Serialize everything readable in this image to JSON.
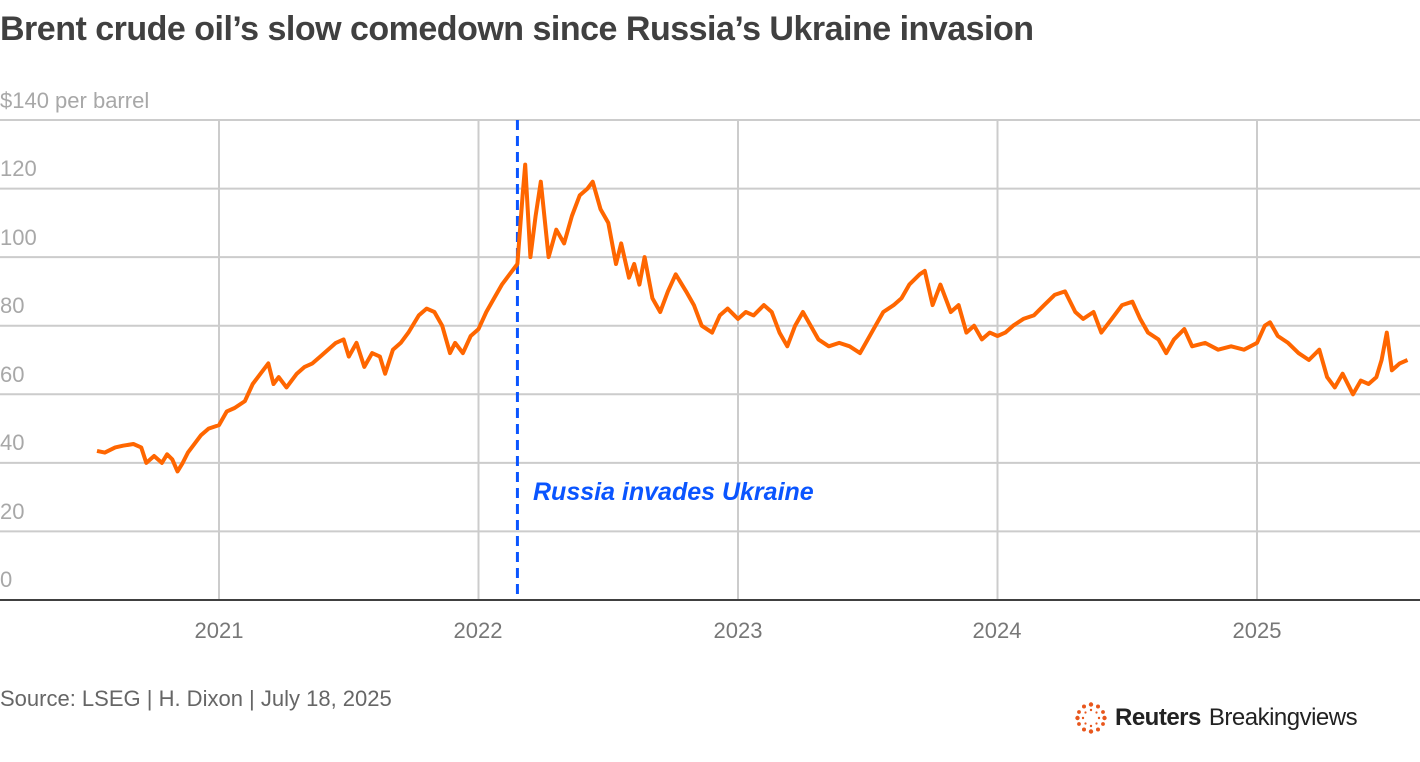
{
  "title": "Brent crude oil’s slow comedown since Russia’s Ukraine invasion",
  "unit_label": "$140 per barrel",
  "source": "Source: LSEG | H. Dixon | July 18, 2025",
  "logo": {
    "icon": "reuters-dot-ring-icon",
    "brand": "Reuters",
    "product": "Breakingviews"
  },
  "colors": {
    "series": "#ff6600",
    "annotation": "#0a55ff",
    "grid": "#cccccc",
    "axis": "#404040",
    "text_muted": "#a8a8a8"
  },
  "annotation": {
    "label": "Russia invades Ukraine",
    "x": 2022.15
  },
  "chart_data": {
    "type": "line",
    "title": "Brent crude oil’s slow comedown since Russia’s Ukraine invasion",
    "xlabel": "",
    "ylabel": "$ per barrel",
    "ylim": [
      0,
      140
    ],
    "yticks": [
      0,
      20,
      40,
      60,
      80,
      100,
      120,
      140
    ],
    "ytick_labels": [
      "0",
      "20",
      "40",
      "60",
      "80",
      "100",
      "120",
      "$140 per barrel"
    ],
    "xlim": [
      2020.53,
      2025.58
    ],
    "xticks": [
      2021,
      2022,
      2023,
      2024,
      2025
    ],
    "xtick_labels": [
      "2021",
      "2022",
      "2023",
      "2024",
      "2025"
    ],
    "grid": true,
    "legend": "none",
    "annotations": [
      {
        "type": "vline",
        "x": 2022.15,
        "label": "Russia invades Ukraine",
        "style": "dashed",
        "color": "#0a55ff"
      }
    ],
    "series": [
      {
        "name": "Brent crude",
        "color": "#ff6600",
        "points": [
          [
            2020.53,
            43.5
          ],
          [
            2020.56,
            43
          ],
          [
            2020.6,
            44.5
          ],
          [
            2020.63,
            45
          ],
          [
            2020.67,
            45.5
          ],
          [
            2020.7,
            44.5
          ],
          [
            2020.72,
            40
          ],
          [
            2020.75,
            42
          ],
          [
            2020.78,
            40
          ],
          [
            2020.8,
            42.5
          ],
          [
            2020.82,
            41
          ],
          [
            2020.84,
            37.5
          ],
          [
            2020.86,
            40
          ],
          [
            2020.88,
            43
          ],
          [
            2020.9,
            45
          ],
          [
            2020.93,
            48
          ],
          [
            2020.96,
            50
          ],
          [
            2021.0,
            51
          ],
          [
            2021.03,
            55
          ],
          [
            2021.06,
            56
          ],
          [
            2021.1,
            58
          ],
          [
            2021.13,
            63
          ],
          [
            2021.16,
            66
          ],
          [
            2021.19,
            69
          ],
          [
            2021.21,
            63
          ],
          [
            2021.23,
            65
          ],
          [
            2021.26,
            62
          ],
          [
            2021.3,
            66
          ],
          [
            2021.33,
            68
          ],
          [
            2021.36,
            69
          ],
          [
            2021.39,
            71
          ],
          [
            2021.42,
            73
          ],
          [
            2021.45,
            75
          ],
          [
            2021.48,
            76
          ],
          [
            2021.5,
            71
          ],
          [
            2021.53,
            75
          ],
          [
            2021.56,
            68
          ],
          [
            2021.59,
            72
          ],
          [
            2021.62,
            71
          ],
          [
            2021.64,
            66
          ],
          [
            2021.67,
            73
          ],
          [
            2021.7,
            75
          ],
          [
            2021.73,
            78
          ],
          [
            2021.77,
            83
          ],
          [
            2021.8,
            85
          ],
          [
            2021.83,
            84
          ],
          [
            2021.86,
            80
          ],
          [
            2021.89,
            72
          ],
          [
            2021.91,
            75
          ],
          [
            2021.94,
            72
          ],
          [
            2021.97,
            77
          ],
          [
            2022.0,
            79
          ],
          [
            2022.03,
            84
          ],
          [
            2022.06,
            88
          ],
          [
            2022.09,
            92
          ],
          [
            2022.12,
            95
          ],
          [
            2022.15,
            98
          ],
          [
            2022.17,
            118
          ],
          [
            2022.18,
            127
          ],
          [
            2022.2,
            100
          ],
          [
            2022.22,
            112
          ],
          [
            2022.24,
            122
          ],
          [
            2022.27,
            100
          ],
          [
            2022.3,
            108
          ],
          [
            2022.33,
            104
          ],
          [
            2022.36,
            112
          ],
          [
            2022.39,
            118
          ],
          [
            2022.42,
            120
          ],
          [
            2022.44,
            122
          ],
          [
            2022.47,
            114
          ],
          [
            2022.5,
            110
          ],
          [
            2022.53,
            98
          ],
          [
            2022.55,
            104
          ],
          [
            2022.58,
            94
          ],
          [
            2022.6,
            98
          ],
          [
            2022.62,
            92
          ],
          [
            2022.64,
            100
          ],
          [
            2022.67,
            88
          ],
          [
            2022.7,
            84
          ],
          [
            2022.73,
            90
          ],
          [
            2022.76,
            95
          ],
          [
            2022.8,
            90
          ],
          [
            2022.83,
            86
          ],
          [
            2022.86,
            80
          ],
          [
            2022.9,
            78
          ],
          [
            2022.93,
            83
          ],
          [
            2022.96,
            85
          ],
          [
            2023.0,
            82
          ],
          [
            2023.03,
            84
          ],
          [
            2023.06,
            83
          ],
          [
            2023.1,
            86
          ],
          [
            2023.13,
            84
          ],
          [
            2023.16,
            78
          ],
          [
            2023.19,
            74
          ],
          [
            2023.22,
            80
          ],
          [
            2023.25,
            84
          ],
          [
            2023.28,
            80
          ],
          [
            2023.31,
            76
          ],
          [
            2023.35,
            74
          ],
          [
            2023.39,
            75
          ],
          [
            2023.43,
            74
          ],
          [
            2023.47,
            72
          ],
          [
            2023.5,
            76
          ],
          [
            2023.53,
            80
          ],
          [
            2023.56,
            84
          ],
          [
            2023.6,
            86
          ],
          [
            2023.63,
            88
          ],
          [
            2023.66,
            92
          ],
          [
            2023.7,
            95
          ],
          [
            2023.72,
            96
          ],
          [
            2023.75,
            86
          ],
          [
            2023.78,
            92
          ],
          [
            2023.82,
            84
          ],
          [
            2023.85,
            86
          ],
          [
            2023.88,
            78
          ],
          [
            2023.91,
            80
          ],
          [
            2023.94,
            76
          ],
          [
            2023.97,
            78
          ],
          [
            2024.0,
            77
          ],
          [
            2024.03,
            78
          ],
          [
            2024.06,
            80
          ],
          [
            2024.1,
            82
          ],
          [
            2024.14,
            83
          ],
          [
            2024.18,
            86
          ],
          [
            2024.22,
            89
          ],
          [
            2024.26,
            90
          ],
          [
            2024.3,
            84
          ],
          [
            2024.33,
            82
          ],
          [
            2024.37,
            84
          ],
          [
            2024.4,
            78
          ],
          [
            2024.44,
            82
          ],
          [
            2024.48,
            86
          ],
          [
            2024.52,
            87
          ],
          [
            2024.55,
            82
          ],
          [
            2024.58,
            78
          ],
          [
            2024.62,
            76
          ],
          [
            2024.65,
            72
          ],
          [
            2024.68,
            76
          ],
          [
            2024.72,
            79
          ],
          [
            2024.75,
            74
          ],
          [
            2024.8,
            75
          ],
          [
            2024.85,
            73
          ],
          [
            2024.9,
            74
          ],
          [
            2024.95,
            73
          ],
          [
            2025.0,
            75
          ],
          [
            2025.03,
            80
          ],
          [
            2025.05,
            81
          ],
          [
            2025.08,
            77
          ],
          [
            2025.12,
            75
          ],
          [
            2025.16,
            72
          ],
          [
            2025.2,
            70
          ],
          [
            2025.24,
            73
          ],
          [
            2025.27,
            65
          ],
          [
            2025.3,
            62
          ],
          [
            2025.33,
            66
          ],
          [
            2025.37,
            60
          ],
          [
            2025.4,
            64
          ],
          [
            2025.43,
            63
          ],
          [
            2025.46,
            65
          ],
          [
            2025.48,
            70
          ],
          [
            2025.5,
            78
          ],
          [
            2025.52,
            67
          ],
          [
            2025.55,
            69
          ],
          [
            2025.58,
            70
          ]
        ]
      }
    ]
  }
}
